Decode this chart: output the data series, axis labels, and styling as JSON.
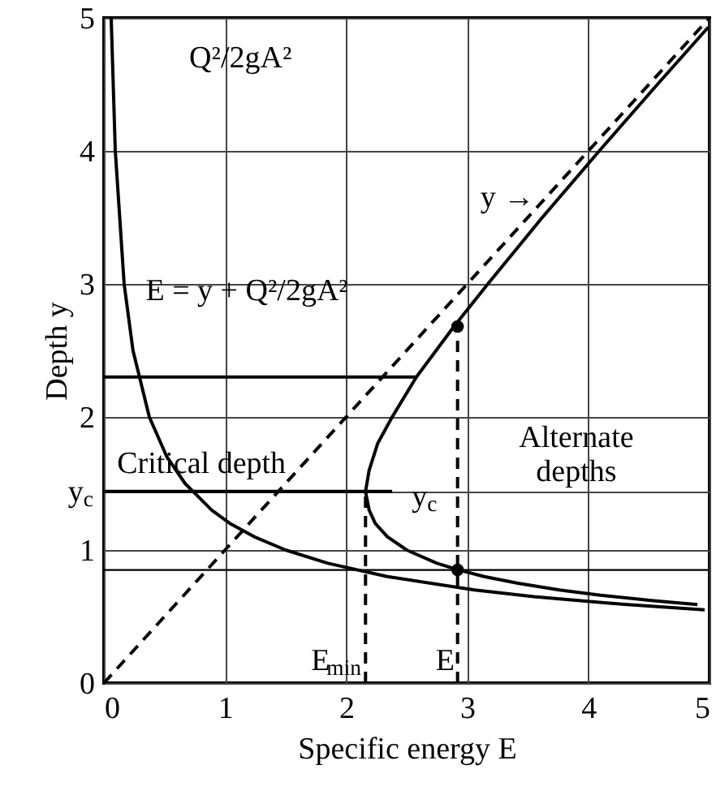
{
  "chart_data": {
    "type": "line",
    "xlabel": "Specific energy E",
    "ylabel": "Depth y",
    "xlim": [
      0,
      5
    ],
    "ylim": [
      0,
      5
    ],
    "xticks": [
      0,
      1,
      2,
      3,
      4,
      5
    ],
    "yticks": [
      0,
      1,
      {
        "value": 1.44,
        "label": "y$_{c}$"
      },
      2,
      3,
      4,
      5
    ],
    "grid": true,
    "series": [
      {
        "type": "line",
        "color": "#000000",
        "line_style": "solid",
        "x": [
          4.9,
          4.52,
          4.1,
          3.76,
          3.42,
          3.14,
          2.93,
          2.75,
          2.5,
          2.34,
          2.24,
          2.19,
          2.16,
          2.19,
          2.26,
          2.38,
          2.58,
          2.89,
          3.17,
          3.62,
          4.09,
          4.57,
          4.99
        ],
        "values": [
          0.59,
          0.62,
          0.66,
          0.7,
          0.75,
          0.8,
          0.85,
          0.9,
          1.0,
          1.1,
          1.2,
          1.3,
          1.44,
          1.6,
          1.8,
          2.0,
          2.3,
          2.68,
          3.0,
          3.5,
          4.0,
          4.5,
          4.93
        ]
      },
      {
        "color": "#000000",
        "line_style": "solid",
        "x": [
          0.06,
          0.094,
          0.167,
          0.24,
          0.375,
          0.52,
          0.67,
          0.89,
          1.04,
          1.24,
          1.5,
          1.85,
          2.34,
          3.06,
          3.55,
          4.17,
          4.96
        ],
        "values": [
          5,
          4,
          3,
          2.5,
          2,
          1.7,
          1.5,
          1.3,
          1.2,
          1.1,
          1.0,
          0.9,
          0.8,
          0.7,
          0.65,
          0.6,
          0.55
        ]
      },
      {
        "color": "#000000",
        "line_style": "dashed",
        "x": [
          0,
          5
        ],
        "values": [
          0,
          5
        ]
      },
      {
        "color": "#000000",
        "line_style": "dashed",
        "x": [
          2.16,
          2.16
        ],
        "values": [
          0,
          1.44
        ]
      },
      {
        "color": "#000000",
        "line_style": "dashed",
        "x": [
          2.92,
          2.92
        ],
        "values": [
          0,
          2.68
        ]
      },
      {
        "color": "#000000",
        "line_style": "solid",
        "x": [
          0,
          2.58
        ],
        "values": [
          2.3,
          2.3
        ]
      },
      {
        "color": "#000000",
        "line_style": "solid",
        "x": [
          0,
          2.38
        ],
        "values": [
          1.44,
          1.44
        ]
      },
      {
        "type": "scatter",
        "color": "#000000",
        "marker": "circle",
        "x": [
          2.92,
          2.92
        ],
        "values": [
          2.68,
          0.85
        ]
      }
    ],
    "ref_lines": [
      {
        "axis": "y",
        "value": 0.85
      }
    ],
    "annotations": [
      "Q²/2gA²",
      "E = y + Q²/2gA²",
      "y →",
      "Critical depth",
      "y$_{c}$",
      "Alternate\ndepths",
      {
        "text": "E$_{min}$",
        "x": 2.16,
        "y": 0.17
      },
      {
        "text": "E",
        "x": 2.92,
        "y": 0.17
      }
    ]
  }
}
